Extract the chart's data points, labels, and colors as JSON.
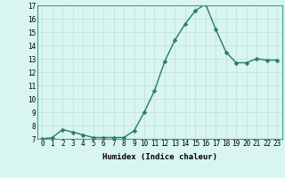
{
  "x": [
    0,
    1,
    2,
    3,
    4,
    5,
    6,
    7,
    8,
    9,
    10,
    11,
    12,
    13,
    14,
    15,
    16,
    17,
    18,
    19,
    20,
    21,
    22,
    23
  ],
  "y": [
    7.0,
    7.1,
    7.7,
    7.5,
    7.3,
    7.1,
    7.1,
    7.1,
    7.1,
    7.6,
    9.0,
    10.6,
    12.8,
    14.4,
    15.6,
    16.6,
    17.1,
    15.2,
    13.5,
    12.7,
    12.7,
    13.0,
    12.9,
    12.9
  ],
  "title": "",
  "xlabel": "Humidex (Indice chaleur)",
  "ylabel": "",
  "ylim": [
    7,
    17
  ],
  "xlim": [
    -0.5,
    23.5
  ],
  "yticks": [
    7,
    8,
    9,
    10,
    11,
    12,
    13,
    14,
    15,
    16,
    17
  ],
  "xticks": [
    0,
    1,
    2,
    3,
    4,
    5,
    6,
    7,
    8,
    9,
    10,
    11,
    12,
    13,
    14,
    15,
    16,
    17,
    18,
    19,
    20,
    21,
    22,
    23
  ],
  "line_color": "#2a7a6a",
  "marker_color": "#2a7a6a",
  "bg_color": "#d8f5f0",
  "grid_color": "#c0ddd8",
  "tick_label_fontsize": 5.5,
  "xlabel_fontsize": 6.5,
  "line_width": 1.0,
  "marker_size": 2.5
}
